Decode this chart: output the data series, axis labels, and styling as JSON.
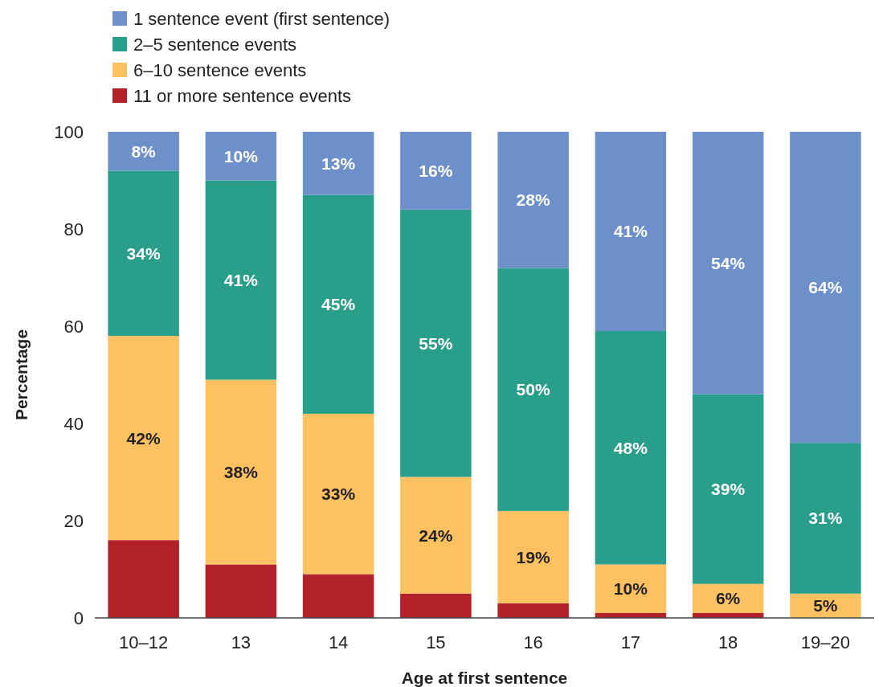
{
  "chart_data": {
    "type": "bar",
    "stacked": true,
    "xlabel": "Age at first sentence",
    "ylabel": "Percentage",
    "categories": [
      "10–12",
      "13",
      "14",
      "15",
      "16",
      "17",
      "18",
      "19–20"
    ],
    "ylim": [
      0,
      100
    ],
    "yticks": [
      0,
      20,
      40,
      60,
      80,
      100
    ],
    "grid": false,
    "legend": "top left",
    "series": [
      {
        "name": "11 or more sentence events",
        "color": "#b22028",
        "values": [
          16,
          11,
          9,
          5,
          3,
          1,
          1,
          0
        ],
        "value_labels": [
          null,
          null,
          null,
          null,
          null,
          null,
          null,
          null
        ]
      },
      {
        "name": "6–10 sentence events",
        "color": "#fdc162",
        "values": [
          42,
          38,
          33,
          24,
          19,
          10,
          6,
          5
        ],
        "value_labels": [
          "42%",
          "38%",
          "33%",
          "24%",
          "19%",
          "10%",
          "6%",
          "5%"
        ]
      },
      {
        "name": "2–5 sentence events",
        "color": "#289e8b",
        "values": [
          34,
          41,
          45,
          55,
          50,
          48,
          39,
          31
        ],
        "value_labels": [
          "34%",
          "41%",
          "45%",
          "55%",
          "50%",
          "48%",
          "39%",
          "31%"
        ]
      },
      {
        "name": "1 sentence event (first sentence)",
        "color": "#6d90cb",
        "values": [
          8,
          10,
          13,
          16,
          28,
          41,
          54,
          64
        ],
        "value_labels": [
          "8%",
          "10%",
          "13%",
          "16%",
          "28%",
          "41%",
          "54%",
          "64%"
        ]
      }
    ]
  }
}
